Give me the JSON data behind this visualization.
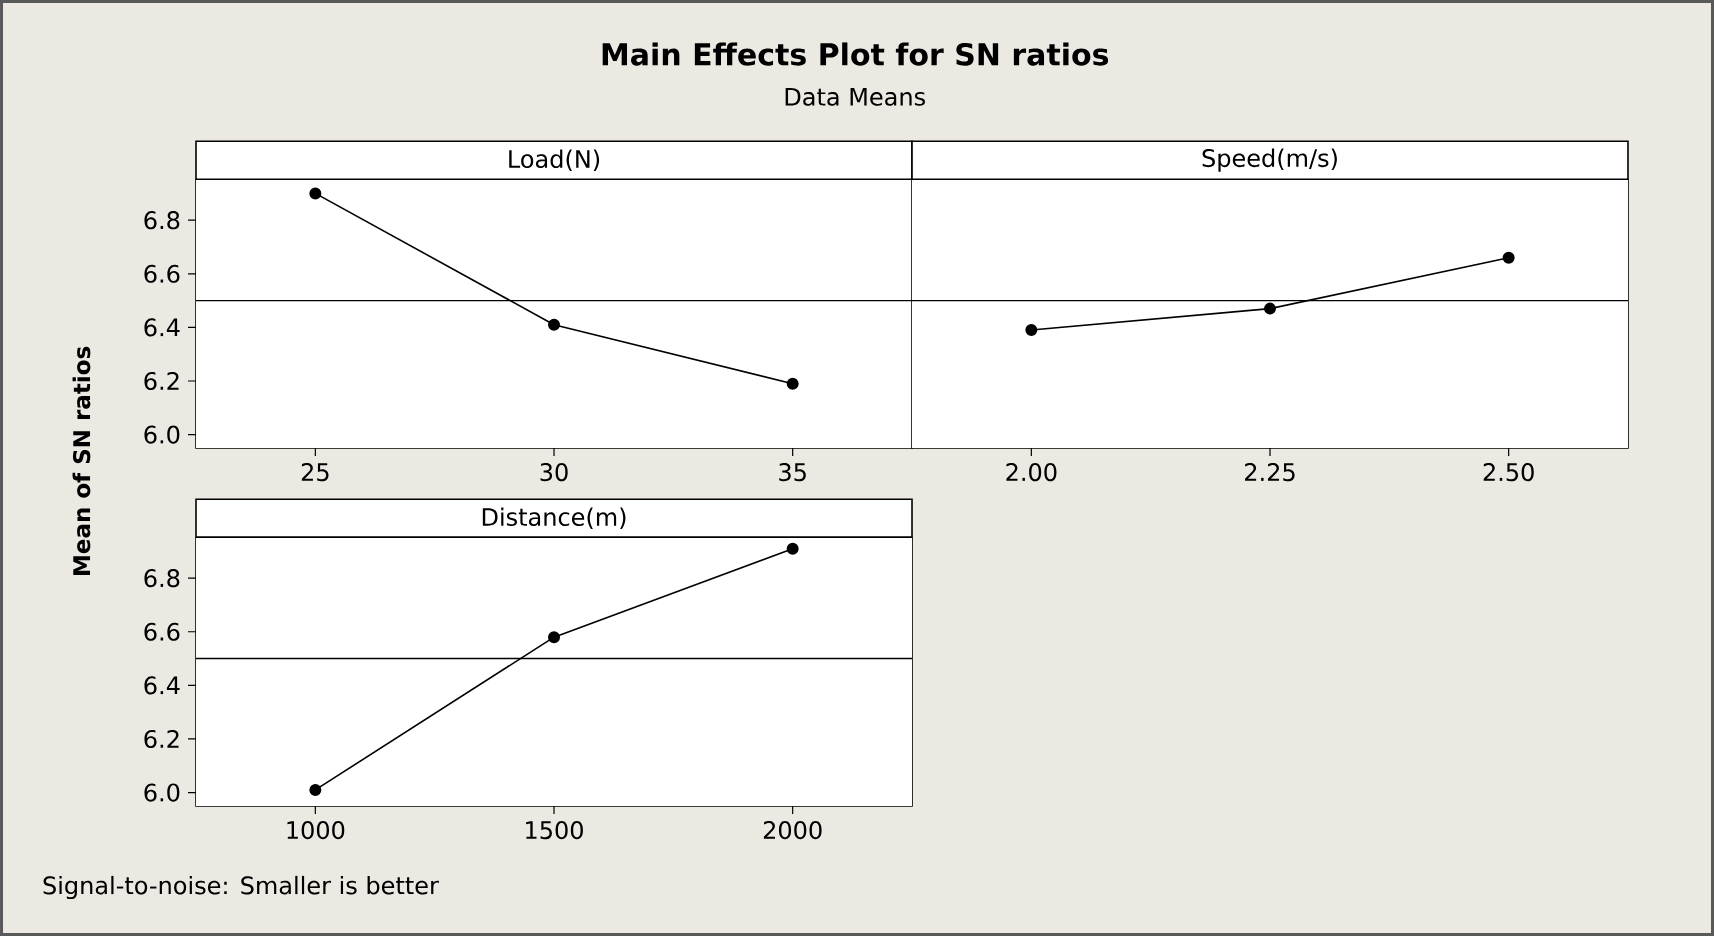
{
  "chart_data": [
    {
      "type": "line",
      "title": "Main Effects Plot for SN ratios",
      "subtitle": "Data Means",
      "ylabel": "Mean of SN ratios",
      "annotations": [
        "Signal-to-noise: Smaller is better"
      ],
      "xlabel": "Load(N)",
      "x": [
        25,
        30,
        35
      ],
      "values": [
        6.9,
        6.41,
        6.19
      ],
      "color": "#000000",
      "marker": "circle",
      "xlim": [
        22.5,
        37.5
      ],
      "xticks": [
        25,
        30,
        35
      ],
      "ylim": [
        5.95,
        6.95
      ],
      "yticks": [
        {
          "value": 6.0,
          "label": "6.0"
        },
        6.2,
        6.4,
        6.6,
        6.8
      ],
      "ref_lines": [
        {
          "axis": "y",
          "value": 6.5
        }
      ]
    },
    {
      "type": "line",
      "xlabel": "Speed(m/s)",
      "x": [
        2.0,
        2.25,
        2.5
      ],
      "values": [
        6.39,
        6.47,
        6.66
      ],
      "color": "#000000",
      "marker": "circle",
      "xlim": [
        1.875,
        2.625
      ],
      "xticks": [
        {
          "value": 2.0,
          "label": "2.00"
        },
        2.25,
        {
          "value": 2.5,
          "label": "2.50"
        }
      ],
      "ylim": [
        5.95,
        6.95
      ],
      "tick_labels": "x",
      "ref_lines": [
        {
          "axis": "y",
          "value": 6.5
        }
      ]
    },
    {
      "type": "line",
      "xlabel": "Distance(m)",
      "x": [
        1000,
        1500,
        2000
      ],
      "values": [
        6.01,
        6.58,
        6.91
      ],
      "color": "#000000",
      "marker": "circle",
      "xlim": [
        750,
        2250
      ],
      "xticks": [
        1000,
        1500,
        2000
      ],
      "ylim": [
        5.95,
        6.95
      ],
      "yticks": [
        {
          "value": 6.0,
          "label": "6.0"
        },
        6.2,
        6.4,
        6.6,
        6.8
      ],
      "ref_lines": [
        {
          "axis": "y",
          "value": 6.5
        }
      ]
    }
  ]
}
